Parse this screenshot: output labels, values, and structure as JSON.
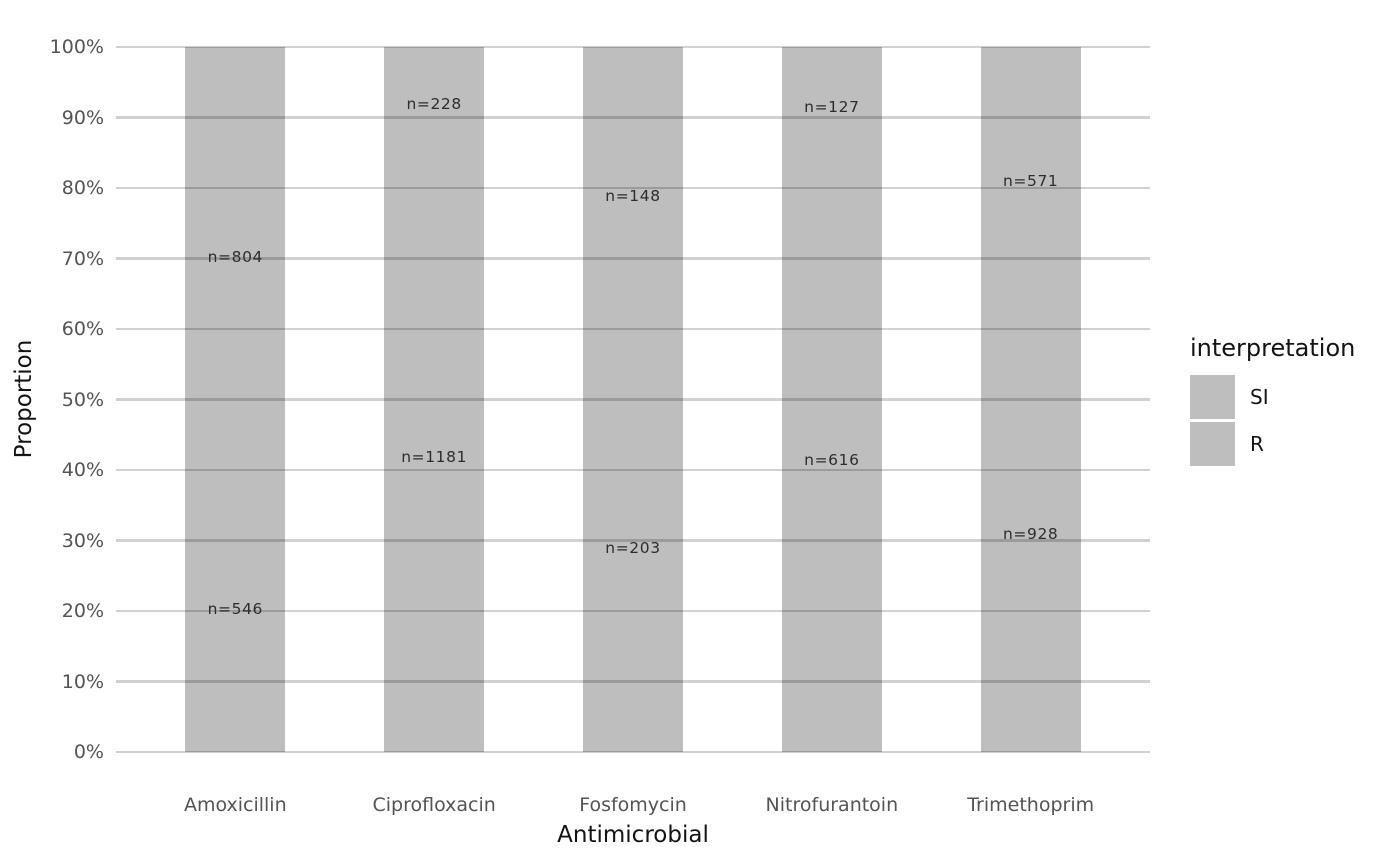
{
  "chart_data": {
    "type": "bar",
    "stacked": true,
    "proportional": true,
    "title": "",
    "xlabel": "Antimicrobial",
    "ylabel": "Proportion",
    "categories": [
      "Amoxicillin",
      "Ciprofloxacin",
      "Fosfomycin",
      "Nitrofurantoin",
      "Trimethoprim"
    ],
    "series": [
      {
        "name": "SI",
        "position": "top",
        "counts": [
          804,
          228,
          148,
          127,
          571
        ],
        "labels": [
          "n=804",
          "n=228",
          "n=148",
          "n=127",
          "n=571"
        ],
        "color": "#bebebe"
      },
      {
        "name": "R",
        "position": "bottom",
        "counts": [
          546,
          1181,
          203,
          616,
          928
        ],
        "labels": [
          "n=546",
          "n=1181",
          "n=203",
          "n=616",
          "n=928"
        ],
        "color": "#bebebe"
      }
    ],
    "y_ticks": [
      {
        "label": "0%",
        "value": 0
      },
      {
        "label": "10%",
        "value": 10
      },
      {
        "label": "20%",
        "value": 20
      },
      {
        "label": "30%",
        "value": 30
      },
      {
        "label": "40%",
        "value": 40
      },
      {
        "label": "50%",
        "value": 50
      },
      {
        "label": "60%",
        "value": 60
      },
      {
        "label": "70%",
        "value": 70
      },
      {
        "label": "80%",
        "value": 80
      },
      {
        "label": "90%",
        "value": 90
      },
      {
        "label": "100%",
        "value": 100
      }
    ],
    "ylim": [
      0,
      100
    ],
    "grid": true,
    "legend": {
      "title": "interpretation",
      "position": "right",
      "entries": [
        {
          "label": "SI",
          "color": "#bebebe"
        },
        {
          "label": "R",
          "color": "#bebebe"
        }
      ]
    },
    "colors": {
      "bar_fill": "#bebebe",
      "gridline": "rgba(0,0,0,0.18)",
      "tick_text": "#545454",
      "axis_title_text": "#141414",
      "bar_label_text": "#2d2d2d",
      "background": "#ffffff"
    }
  }
}
